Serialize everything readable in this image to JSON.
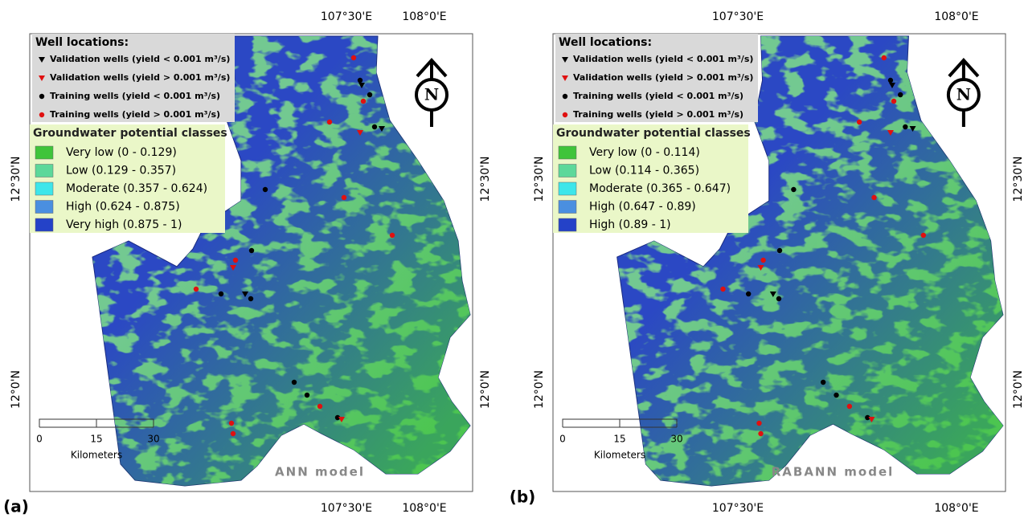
{
  "panels": [
    {
      "label": "(a)",
      "model": "ANN model",
      "top_ticks": [
        "107°30'E",
        "108°0'E"
      ],
      "bottom_ticks": [
        "107°30'E",
        "108°0'E"
      ],
      "left_ticks": [
        "12°30'N",
        "12°0'N"
      ],
      "right_ticks": [
        "12°30'N",
        "12°0'N"
      ],
      "legend": {
        "wells_title": "Well locations:",
        "wells": [
          "Validation wells (yield < 0.001 m³/s)",
          "Validation wells (yield > 0.001 m³/s)",
          "Training wells (yield < 0.001 m³/s)",
          "Training wells (yield > 0.001 m³/s)"
        ],
        "classes_title": "Groundwater potential classes",
        "classes": [
          {
            "label": "Very low (0 - 0.129)",
            "color": "#3fc43a"
          },
          {
            "label": "Low (0.129 - 0.357)",
            "color": "#5cd89a"
          },
          {
            "label": "Moderate (0.357 - 0.624)",
            "color": "#3de6ea"
          },
          {
            "label": "High (0.624 - 0.875)",
            "color": "#4a8fe0"
          },
          {
            "label": "Very high (0.875 - 1)",
            "color": "#2442c8"
          }
        ]
      },
      "scale": {
        "ticks": [
          "0",
          "15",
          "30"
        ],
        "unit": "Kilometers"
      },
      "north": "N"
    },
    {
      "label": "(b)",
      "model": "RABANN model",
      "top_ticks": [
        "107°30'E",
        "108°0'E"
      ],
      "bottom_ticks": [
        "107°30'E",
        "108°0'E"
      ],
      "left_ticks": [
        "12°30'N",
        "12°0'N"
      ],
      "right_ticks": [
        "12°30'N",
        "12°0'N"
      ],
      "legend": {
        "wells_title": "Well locations:",
        "wells": [
          "Validation wells (yield < 0.001 m³/s)",
          "Validation wells (yield > 0.001 m³/s)",
          "Training wells (yield < 0.001 m³/s)",
          "Training wells (yield > 0.001 m³/s)"
        ],
        "classes_title": "Groundwater potential classes",
        "classes": [
          {
            "label": "Very low (0 - 0.114)",
            "color": "#3fc43a"
          },
          {
            "label": "Low (0.114 - 0.365)",
            "color": "#5cd89a"
          },
          {
            "label": "Moderate (0.365 - 0.647)",
            "color": "#3de6ea"
          },
          {
            "label": "High (0.647 - 0.89)",
            "color": "#4a8fe0"
          },
          {
            "label": "High (0.89 - 1)",
            "color": "#2442c8"
          }
        ]
      },
      "scale": {
        "ticks": [
          "0",
          "15",
          "30"
        ],
        "unit": "Kilometers"
      },
      "north": "N"
    }
  ]
}
